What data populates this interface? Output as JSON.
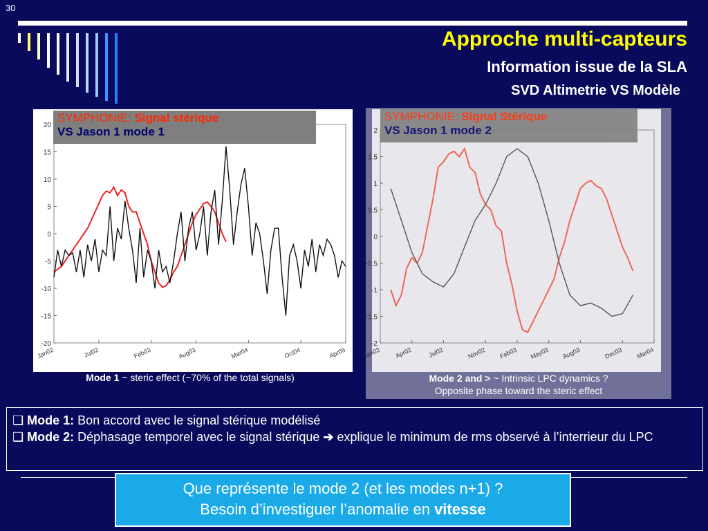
{
  "slide": {
    "number": "30",
    "title": "Approche multi-capteurs",
    "subtitle": "Information issue de la SLA",
    "subsubtitle": "SVD Altimetrie VS Modèle"
  },
  "colors": {
    "background": "#0a0a5c",
    "title": "#ffff00",
    "legend_red": "#ff2a00",
    "legend_dark_blue": "#00006e",
    "question_box": "#1aaae8",
    "series_red": "#ee2222",
    "series_black": "#111111"
  },
  "chart1": {
    "legend_prefix": "SYMPHONIE: ",
    "legend_bold": "Signal stérique",
    "legend_line2": "VS Jason 1 mode 1",
    "caption_bold": "Mode 1",
    "caption_rest": " ~ steric effect (~70% of the total signals)"
  },
  "chart2": {
    "legend_prefix": "SYMPHONIE: ",
    "legend_bold": "Signal Stérique",
    "legend_line2": "VS Jason 1 mode 2",
    "caption_bold": "Mode 2 and >",
    "caption_rest": " ~ Intrinsic LPC dynamics ?",
    "caption_line2": "Opposite phase toward the steric effect"
  },
  "chart_data": [
    {
      "type": "line",
      "ylim": [
        -20,
        20
      ],
      "yticks": [
        "20",
        "15",
        "10",
        "5",
        "0",
        "-5",
        "-10",
        "-15",
        "-20"
      ],
      "xlim": [
        0,
        39
      ],
      "xticks": [
        {
          "label": "Jan02",
          "x": 0
        },
        {
          "label": "Jul02",
          "x": 6
        },
        {
          "label": "Feb03",
          "x": 13
        },
        {
          "label": "Aug03",
          "x": 19
        },
        {
          "label": "Mar04",
          "x": 26
        },
        {
          "label": "Oct04",
          "x": 33
        },
        {
          "label": "Apr05",
          "x": 39
        }
      ],
      "series": [
        {
          "color": "#ee2222",
          "x": [
            0,
            0.5,
            1,
            1.5,
            2,
            2.5,
            3,
            3.5,
            4,
            4.5,
            5,
            5.5,
            6,
            6.5,
            7,
            7.5,
            8,
            8.5,
            9,
            9.5,
            10,
            10.5,
            11,
            11.5,
            12,
            12.5,
            13,
            13.5,
            14,
            14.5,
            15,
            15.5,
            16,
            16.5,
            17,
            17.5,
            18,
            18.5,
            19,
            19.5,
            20,
            20.5,
            21,
            21.5,
            22,
            22.5,
            23
          ],
          "y": [
            -7,
            -6.5,
            -6,
            -5,
            -4,
            -3,
            -2,
            -1,
            0,
            1,
            2.5,
            4,
            5.5,
            7,
            7.8,
            7.5,
            8.5,
            7,
            8,
            7.5,
            5,
            4,
            4,
            2,
            0,
            -2,
            -5,
            -7,
            -9,
            -9.8,
            -9.5,
            -8.5,
            -7,
            -6,
            -4,
            -2,
            0,
            2,
            3.5,
            4.5,
            5.5,
            5.8,
            5,
            4,
            2,
            0,
            -1.5
          ]
        },
        {
          "color": "#111111",
          "x": [
            0,
            0.5,
            1,
            1.5,
            2,
            2.5,
            3,
            3.5,
            4,
            4.5,
            5,
            5.5,
            6,
            6.5,
            7,
            7.5,
            8,
            8.5,
            9,
            9.5,
            10,
            10.5,
            11,
            11.5,
            12,
            12.5,
            13,
            13.5,
            14,
            14.5,
            15,
            15.5,
            16,
            16.5,
            17,
            17.5,
            18,
            18.5,
            19,
            19.5,
            20,
            20.5,
            21,
            21.5,
            22,
            22.5,
            23,
            23.5,
            24,
            24.5,
            25,
            25.5,
            26,
            26.5,
            27,
            27.5,
            28,
            28.5,
            29,
            29.5,
            30,
            30.5,
            31,
            31.5,
            32,
            32.5,
            33,
            33.5,
            34,
            34.5,
            35,
            35.5,
            36,
            36.5,
            37,
            37.5,
            38,
            38.5,
            39
          ],
          "y": [
            -8,
            -3,
            -6,
            -3,
            -4,
            -3.5,
            -7,
            -3,
            -8,
            -2,
            -5,
            -1,
            -7,
            -3,
            -4,
            5,
            -5,
            1,
            -1,
            6,
            1,
            -3,
            -9,
            1,
            -8,
            -3,
            -5,
            -10,
            -3,
            -7,
            -6,
            -9,
            -5,
            0,
            4,
            -5,
            1,
            4,
            -3,
            0,
            5,
            -4,
            4,
            8,
            -2,
            6,
            16,
            8,
            -2,
            4,
            9,
            12,
            5,
            -4,
            2,
            0,
            -5,
            -11,
            -3,
            1,
            1,
            -8,
            -15,
            -4,
            -2,
            -5,
            -10,
            -3,
            -6,
            -1,
            -7,
            -2,
            -4,
            -1,
            -2,
            -4,
            -8,
            -5,
            -6
          ]
        }
      ]
    },
    {
      "type": "line",
      "ylim": [
        -2,
        2
      ],
      "yticks": [
        "2",
        "1.5",
        "1",
        "0.5",
        "0",
        "-0.5",
        "-1",
        "-1.5",
        "-2"
      ],
      "xlim": [
        0,
        26
      ],
      "xticks": [
        {
          "label": "Jan02",
          "x": 0
        },
        {
          "label": "Apr02",
          "x": 3
        },
        {
          "label": "Jul02",
          "x": 6
        },
        {
          "label": "Nov02",
          "x": 10
        },
        {
          "label": "Feb03",
          "x": 13
        },
        {
          "label": "May03",
          "x": 16
        },
        {
          "label": "Aug03",
          "x": 19
        },
        {
          "label": "Dec03",
          "x": 23
        },
        {
          "label": "Mar04",
          "x": 26
        }
      ],
      "series": [
        {
          "color": "#ee6655",
          "x": [
            1,
            1.5,
            2,
            2.5,
            3,
            3.5,
            4,
            4.5,
            5,
            5.5,
            6,
            6.5,
            7,
            7.5,
            8,
            8.5,
            9,
            9.5,
            10,
            10.5,
            11,
            11.5,
            12,
            12.5,
            13,
            13.5,
            14,
            14.5,
            15,
            15.5,
            16,
            16.5,
            17,
            17.5,
            18,
            18.5,
            19,
            19.5,
            20,
            20.5,
            21,
            21.5,
            22,
            22.5,
            23,
            23.5,
            24
          ],
          "y": [
            -1,
            -1.3,
            -1.1,
            -0.6,
            -0.4,
            -0.5,
            -0.3,
            0.2,
            0.7,
            1.3,
            1.4,
            1.55,
            1.6,
            1.5,
            1.65,
            1.3,
            1.2,
            0.8,
            0.6,
            0.5,
            0.2,
            0.1,
            -0.5,
            -0.9,
            -1.4,
            -1.75,
            -1.8,
            -1.6,
            -1.4,
            -1.2,
            -1.0,
            -0.8,
            -0.4,
            -0.1,
            0.3,
            0.6,
            0.9,
            1.0,
            1.05,
            0.95,
            0.9,
            0.7,
            0.4,
            0.1,
            -0.2,
            -0.4,
            -0.65
          ]
        },
        {
          "color": "#555555",
          "x": [
            1,
            2,
            3,
            4,
            5,
            6,
            7,
            8,
            9,
            10,
            11,
            12,
            13,
            14,
            15,
            16,
            17,
            18,
            19,
            20,
            21,
            22,
            23,
            24
          ],
          "y": [
            0.9,
            0.3,
            -0.3,
            -0.7,
            -0.85,
            -0.95,
            -0.7,
            -0.2,
            0.3,
            0.6,
            1.0,
            1.5,
            1.65,
            1.5,
            1.0,
            0.3,
            -0.5,
            -1.1,
            -1.3,
            -1.25,
            -1.35,
            -1.5,
            -1.45,
            -1.1
          ]
        }
      ]
    }
  ],
  "notes": {
    "line1_label": "Mode 1:",
    "line1_text": " Bon accord avec le signal stérique modélisé",
    "line2_label": "Mode 2:",
    "line2_text": " Déphasage temporel avec le signal stérique ",
    "line2_arrow": "➔",
    "line2_text2": " explique le minimum de rms observé à l’interrieur du LPC"
  },
  "question": {
    "line1": "Que représente le mode 2 (et les modes n+1) ?",
    "line2_prefix": "Besoin d’investiguer l’anomalie en ",
    "line2_bold": "vitesse"
  }
}
